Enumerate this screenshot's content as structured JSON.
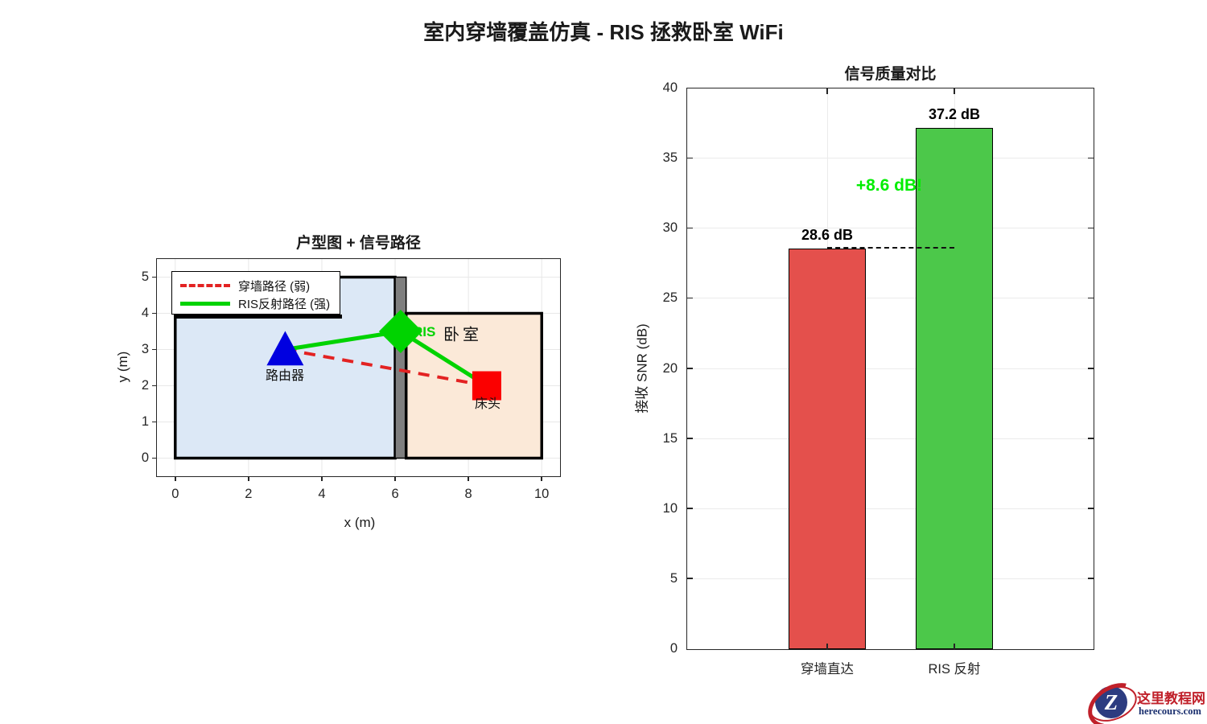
{
  "main_title": "室内穿墙覆盖仿真 - RIS 拯救卧室 WiFi",
  "chart_data": [
    {
      "type": "line",
      "title": "户型图 + 信号路径",
      "xlabel": "x (m)",
      "ylabel": "y (m)",
      "xlim": [
        -0.5,
        10.5
      ],
      "ylim": [
        -0.5,
        5.5
      ],
      "grid_x": [
        0,
        2,
        4,
        6,
        8,
        10
      ],
      "grid_y": [
        0,
        1,
        2,
        3,
        4,
        5
      ],
      "grid_color": "#e8e8e8",
      "x_tick_labels": [
        "0",
        "2",
        "4",
        "6",
        "8",
        "10"
      ],
      "y_tick_labels": [
        "0",
        "1",
        "2",
        "3",
        "4",
        "5"
      ],
      "rooms": [
        {
          "id": "living-room",
          "x": [
            0,
            6
          ],
          "y": [
            0,
            5
          ],
          "fill": "#dce8f6",
          "stroke": "#000000",
          "stroke_width": 3.5
        },
        {
          "id": "wall",
          "x": [
            6,
            6.3
          ],
          "y": [
            0,
            5
          ],
          "fill": "#7f7f7f",
          "stroke": "#000000",
          "stroke_width": 1.5
        },
        {
          "id": "bedroom",
          "x": [
            6.3,
            10
          ],
          "y": [
            0,
            4
          ],
          "fill": "#fbe9d8",
          "stroke": "#000000",
          "stroke_width": 3.5
        }
      ],
      "series": [
        {
          "id": "through-wall-path",
          "name": "穿墙路径 (弱)",
          "style": "dashed",
          "color": "#e32222",
          "width": 4,
          "points": [
            [
              3,
              3
            ],
            [
              8.5,
              2
            ]
          ]
        },
        {
          "id": "ris-reflect-path",
          "name": "RIS反射路径 (强)",
          "style": "solid",
          "color": "#00d300",
          "width": 5,
          "points": [
            [
              3,
              3
            ],
            [
              6.15,
              3.5
            ],
            [
              8.5,
              2
            ]
          ]
        }
      ],
      "markers": [
        {
          "id": "router",
          "shape": "triangle",
          "color": "#0000e0",
          "x": 3,
          "y": 3,
          "size": 23,
          "label": "路由器"
        },
        {
          "id": "ris",
          "shape": "diamond",
          "color": "#00d300",
          "x": 6.15,
          "y": 3.5,
          "size": 27,
          "label": "RIS"
        },
        {
          "id": "bed",
          "shape": "square",
          "color": "#fb0000",
          "x": 8.5,
          "y": 2,
          "size": 25,
          "label": "床头"
        }
      ],
      "bedroom_label": "卧室",
      "legend_position": "northwest"
    },
    {
      "type": "bar",
      "title": "信号质量对比",
      "ylabel": "接收 SNR (dB)",
      "categories": [
        "穿墙直达",
        "RIS 反射"
      ],
      "values": [
        28.6,
        37.2
      ],
      "bar_labels": [
        "28.6 dB",
        "37.2 dB"
      ],
      "colors": [
        "#e4504c",
        "#4cc84a"
      ],
      "edge_color": "#000000",
      "ylim": [
        0,
        40
      ],
      "yticks": [
        0,
        5,
        10,
        15,
        20,
        25,
        30,
        35,
        40
      ],
      "y_tick_labels": [
        "0",
        "5",
        "10",
        "15",
        "20",
        "25",
        "30",
        "35",
        "40"
      ],
      "annotation": "+8.6 dB!",
      "annotation_color": "#00ee00",
      "baseline": 28.6,
      "grid": true
    }
  ],
  "logo": {
    "letter": "Z",
    "site_name": "这里教程网",
    "site_url": "herecours.com"
  }
}
